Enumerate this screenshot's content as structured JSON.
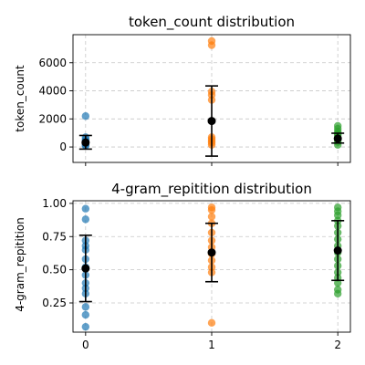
{
  "chart_data": [
    {
      "type": "scatter",
      "title": "token_count distribution",
      "xlabel": "",
      "ylabel": "token_count",
      "xlim": [
        -0.1,
        2.1
      ],
      "ylim": [
        -1100,
        8000
      ],
      "x_ticks": [
        0,
        1,
        2
      ],
      "x_tick_labels": [
        "",
        "",
        ""
      ],
      "y_ticks": [
        0,
        2000,
        4000,
        6000
      ],
      "y_tick_labels": [
        "0",
        "2000",
        "4000",
        "6000"
      ],
      "grid": true,
      "series": [
        {
          "color": "#1f77b4",
          "x": 0,
          "values": [
            2200,
            700,
            550,
            450,
            380,
            320,
            260,
            200,
            150,
            90
          ]
        },
        {
          "color": "#ff7f0e",
          "x": 1,
          "values": [
            7550,
            7250,
            3950,
            3700,
            3350,
            700,
            560,
            420,
            300,
            150
          ]
        },
        {
          "color": "#2ca02c",
          "x": 2,
          "values": [
            1500,
            1300,
            1100,
            950,
            850,
            700,
            600,
            500,
            350,
            150
          ]
        }
      ],
      "summary": [
        {
          "x": 0,
          "mean": 320,
          "low": -150,
          "high": 820
        },
        {
          "x": 1,
          "mean": 1850,
          "low": -650,
          "high": 4350
        },
        {
          "x": 2,
          "mean": 600,
          "low": 280,
          "high": 980
        }
      ]
    },
    {
      "type": "scatter",
      "title": "4-gram_repitition distribution",
      "xlabel": "",
      "ylabel": "4-gram_repitition",
      "xlim": [
        -0.1,
        2.1
      ],
      "ylim": [
        0.03,
        1.02
      ],
      "x_ticks": [
        0,
        1,
        2
      ],
      "x_tick_labels": [
        "0",
        "1",
        "2"
      ],
      "y_ticks": [
        0.25,
        0.5,
        0.75,
        1.0
      ],
      "y_tick_labels": [
        "0.25",
        "0.50",
        "0.75",
        "1.00"
      ],
      "grid": true,
      "series": [
        {
          "color": "#1f77b4",
          "x": 0,
          "values": [
            0.96,
            0.88,
            0.72,
            0.68,
            0.65,
            0.58,
            0.52,
            0.46,
            0.4,
            0.36,
            0.32,
            0.22,
            0.16,
            0.07
          ]
        },
        {
          "color": "#ff7f0e",
          "x": 1,
          "values": [
            0.97,
            0.95,
            0.9,
            0.85,
            0.78,
            0.72,
            0.67,
            0.62,
            0.57,
            0.52,
            0.48,
            0.1
          ]
        },
        {
          "color": "#2ca02c",
          "x": 2,
          "values": [
            0.97,
            0.94,
            0.91,
            0.87,
            0.83,
            0.78,
            0.73,
            0.68,
            0.63,
            0.58,
            0.53,
            0.48,
            0.44,
            0.4,
            0.35,
            0.32
          ]
        }
      ],
      "summary": [
        {
          "x": 0,
          "mean": 0.51,
          "low": 0.26,
          "high": 0.76
        },
        {
          "x": 1,
          "mean": 0.63,
          "low": 0.41,
          "high": 0.85
        },
        {
          "x": 2,
          "mean": 0.645,
          "low": 0.42,
          "high": 0.87
        }
      ]
    }
  ]
}
